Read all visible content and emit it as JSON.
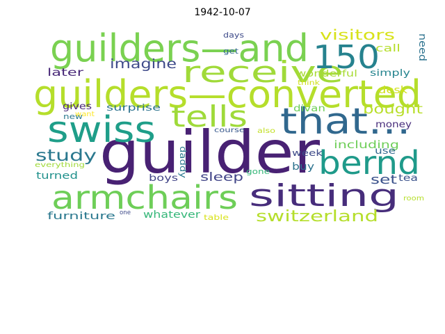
{
  "chart_data": {
    "type": "wordcloud",
    "title": "1942-10-07",
    "background": "#ffffff",
    "words": [
      {
        "text": "guilder",
        "color": "#482173"
      },
      {
        "text": "guilders—converted",
        "color": "#b5de2b"
      },
      {
        "text": "guilders—and",
        "color": "#7ad151"
      },
      {
        "text": "swiss",
        "color": "#1f9e89"
      },
      {
        "text": "that…",
        "color": "#31688e"
      },
      {
        "text": "sitting",
        "color": "#472d7b"
      },
      {
        "text": "armchairs",
        "color": "#6ece58"
      },
      {
        "text": "receive",
        "color": "#a0da39"
      },
      {
        "text": "tells",
        "color": "#9fda3a"
      },
      {
        "text": "150",
        "color": "#26828e"
      },
      {
        "text": "bernd",
        "color": "#1f9a8a"
      },
      {
        "text": "switzerland",
        "color": "#b5de2b"
      },
      {
        "text": "study",
        "color": "#2a788e"
      },
      {
        "text": "imagine",
        "color": "#3e4a89"
      },
      {
        "text": "visitors",
        "color": "#d8e219"
      },
      {
        "text": "bought",
        "color": "#b8de29"
      },
      {
        "text": "sleep",
        "color": "#414487"
      },
      {
        "text": "set",
        "color": "#3b528b"
      },
      {
        "text": "including",
        "color": "#6ece58"
      },
      {
        "text": "later",
        "color": "#482878"
      },
      {
        "text": "wonderful",
        "color": "#a8db34"
      },
      {
        "text": "simply",
        "color": "#25848e"
      },
      {
        "text": "desk",
        "color": "#d0e11c"
      },
      {
        "text": "call",
        "color": "#b5de2b"
      },
      {
        "text": "need",
        "color": "#2c728e"
      },
      {
        "text": "turned",
        "color": "#21918c"
      },
      {
        "text": "furniture",
        "color": "#2a788e"
      },
      {
        "text": "whatever",
        "color": "#35b779"
      },
      {
        "text": "boys",
        "color": "#414487"
      },
      {
        "text": "buy",
        "color": "#2c728e"
      },
      {
        "text": "money",
        "color": "#472d7b"
      },
      {
        "text": "use",
        "color": "#31688e"
      },
      {
        "text": "tea",
        "color": "#3b528b"
      },
      {
        "text": "divan",
        "color": "#6ece58"
      },
      {
        "text": "surprise",
        "color": "#2c728e"
      },
      {
        "text": "gives",
        "color": "#482878"
      },
      {
        "text": "daddy",
        "color": "#2a788e"
      },
      {
        "text": "week",
        "color": "#3e4a89"
      },
      {
        "text": "gone",
        "color": "#35b779"
      },
      {
        "text": "new",
        "color": "#2a788e"
      },
      {
        "text": "want",
        "color": "#fde725"
      },
      {
        "text": "everything",
        "color": "#a0da39"
      },
      {
        "text": "course",
        "color": "#38588c"
      },
      {
        "text": "also",
        "color": "#c2df23"
      },
      {
        "text": "think",
        "color": "#d0e11c"
      },
      {
        "text": "days",
        "color": "#3e4a89"
      },
      {
        "text": "get",
        "color": "#31688e"
      },
      {
        "text": "table",
        "color": "#d8e219"
      },
      {
        "text": "room",
        "color": "#b5de2b"
      },
      {
        "text": "one",
        "color": "#3e4a89"
      }
    ]
  }
}
